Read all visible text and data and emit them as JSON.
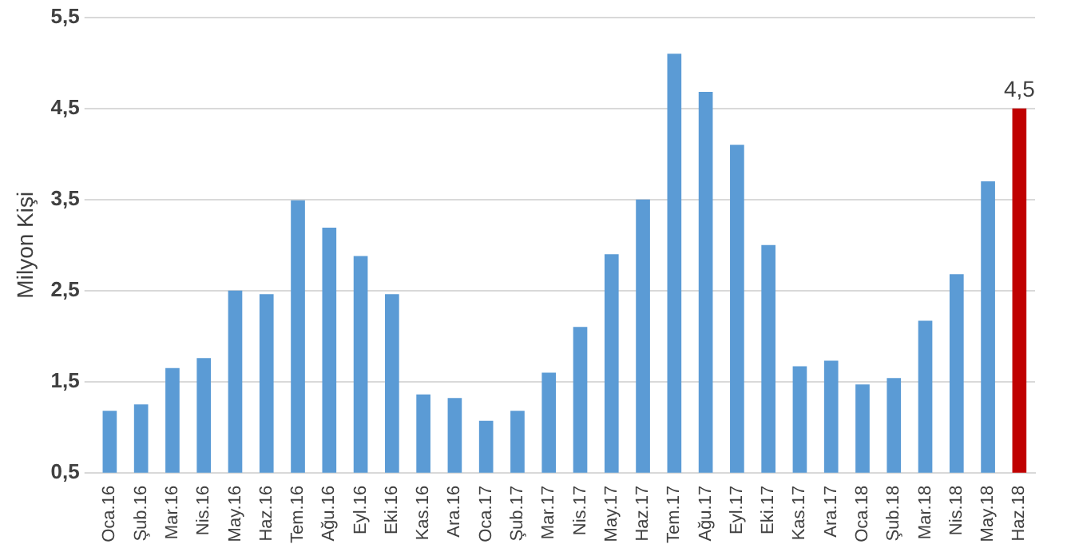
{
  "chart_data": {
    "type": "bar",
    "ylabel": "Milyon Kişi",
    "categories": [
      "Oca.16",
      "Şub.16",
      "Mar.16",
      "Nis.16",
      "May.16",
      "Haz.16",
      "Tem.16",
      "Ağu.16",
      "Eyl.16",
      "Eki.16",
      "Kas.16",
      "Ara.16",
      "Oca.17",
      "Şub.17",
      "Mar.17",
      "Nis.17",
      "May.17",
      "Haz.17",
      "Tem.17",
      "Ağu.17",
      "Eyl.17",
      "Eki.17",
      "Kas.17",
      "Ara.17",
      "Oca.18",
      "Şub.18",
      "Mar.18",
      "Nis.18",
      "May.18",
      "Haz.18"
    ],
    "values": [
      1.18,
      1.25,
      1.65,
      1.76,
      2.5,
      2.46,
      3.49,
      3.19,
      2.88,
      2.46,
      1.36,
      1.32,
      1.07,
      1.18,
      1.6,
      2.1,
      2.9,
      3.5,
      5.1,
      4.68,
      4.1,
      3.0,
      1.67,
      1.73,
      1.47,
      1.54,
      2.17,
      2.68,
      3.7,
      4.5
    ],
    "colors": [
      "#5b9bd5",
      "#5b9bd5",
      "#5b9bd5",
      "#5b9bd5",
      "#5b9bd5",
      "#5b9bd5",
      "#5b9bd5",
      "#5b9bd5",
      "#5b9bd5",
      "#5b9bd5",
      "#5b9bd5",
      "#5b9bd5",
      "#5b9bd5",
      "#5b9bd5",
      "#5b9bd5",
      "#5b9bd5",
      "#5b9bd5",
      "#5b9bd5",
      "#5b9bd5",
      "#5b9bd5",
      "#5b9bd5",
      "#5b9bd5",
      "#5b9bd5",
      "#5b9bd5",
      "#5b9bd5",
      "#5b9bd5",
      "#5b9bd5",
      "#5b9bd5",
      "#5b9bd5",
      "#c00000"
    ],
    "value_labels": [
      null,
      null,
      null,
      null,
      null,
      null,
      null,
      null,
      null,
      null,
      null,
      null,
      null,
      null,
      null,
      null,
      null,
      null,
      null,
      null,
      null,
      null,
      null,
      null,
      null,
      null,
      null,
      null,
      null,
      "4,5"
    ],
    "ylim": [
      0.5,
      5.5
    ],
    "yticks": [
      {
        "value": 0.5,
        "label": "0,5"
      },
      {
        "value": 1.5,
        "label": "1,5"
      },
      {
        "value": 2.5,
        "label": "2,5"
      },
      {
        "value": 3.5,
        "label": "3,5"
      },
      {
        "value": 4.5,
        "label": "4,5"
      },
      {
        "value": 5.5,
        "label": "5,5"
      }
    ],
    "grid": "y",
    "legend": false
  }
}
